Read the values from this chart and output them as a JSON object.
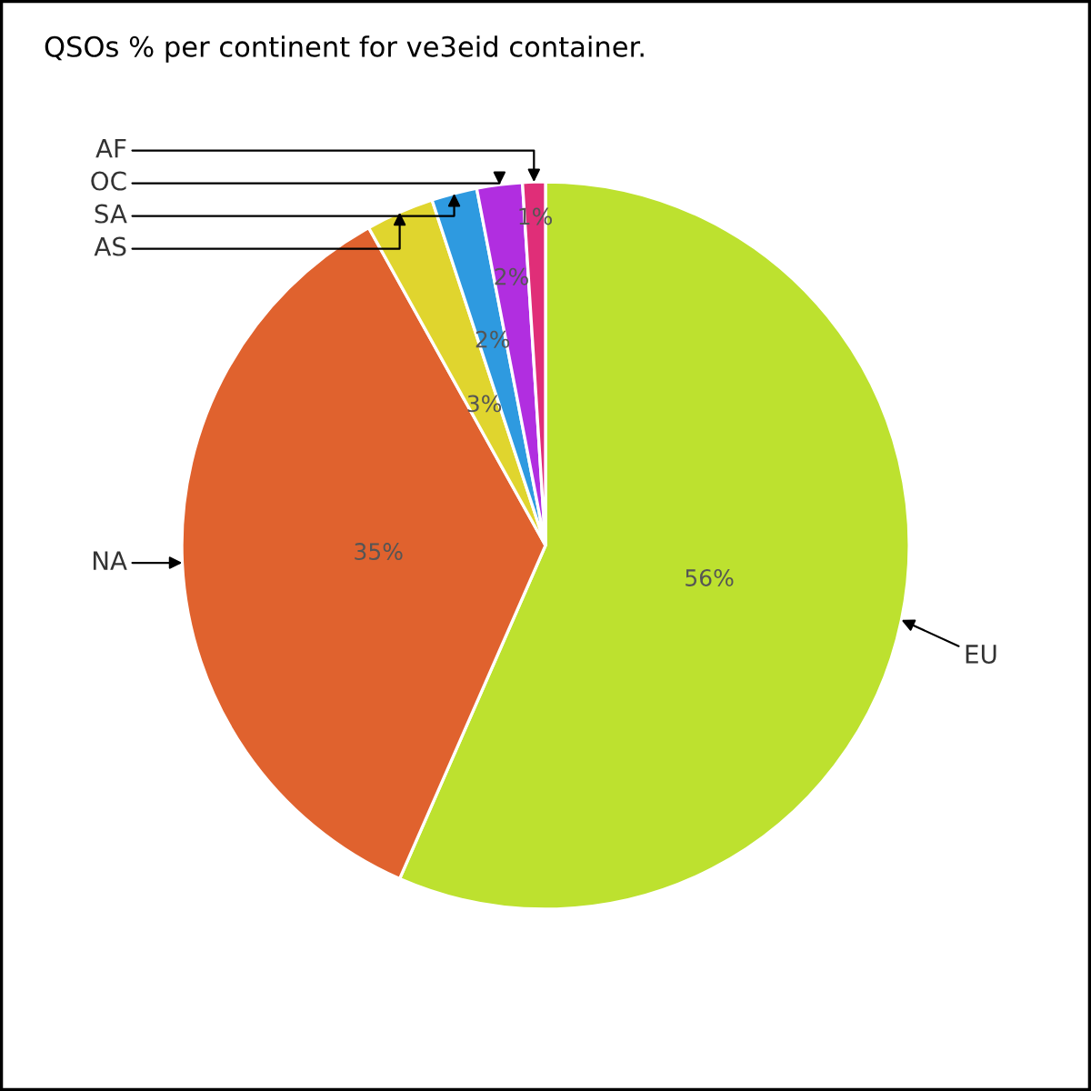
{
  "chart_data": {
    "type": "pie",
    "title": "QSOs % per continent for ve3eid container.",
    "categories": [
      "EU",
      "NA",
      "AS",
      "SA",
      "OC",
      "AF"
    ],
    "values": [
      56,
      35,
      3,
      2,
      2,
      1
    ],
    "colors": [
      "#bde12f",
      "#e0622e",
      "#e0d52e",
      "#2e9ae0",
      "#b12ee0",
      "#e02e78"
    ],
    "value_labels": [
      "56%",
      "35%",
      "3%",
      "2%",
      "2%",
      "1%"
    ],
    "legend": false
  }
}
